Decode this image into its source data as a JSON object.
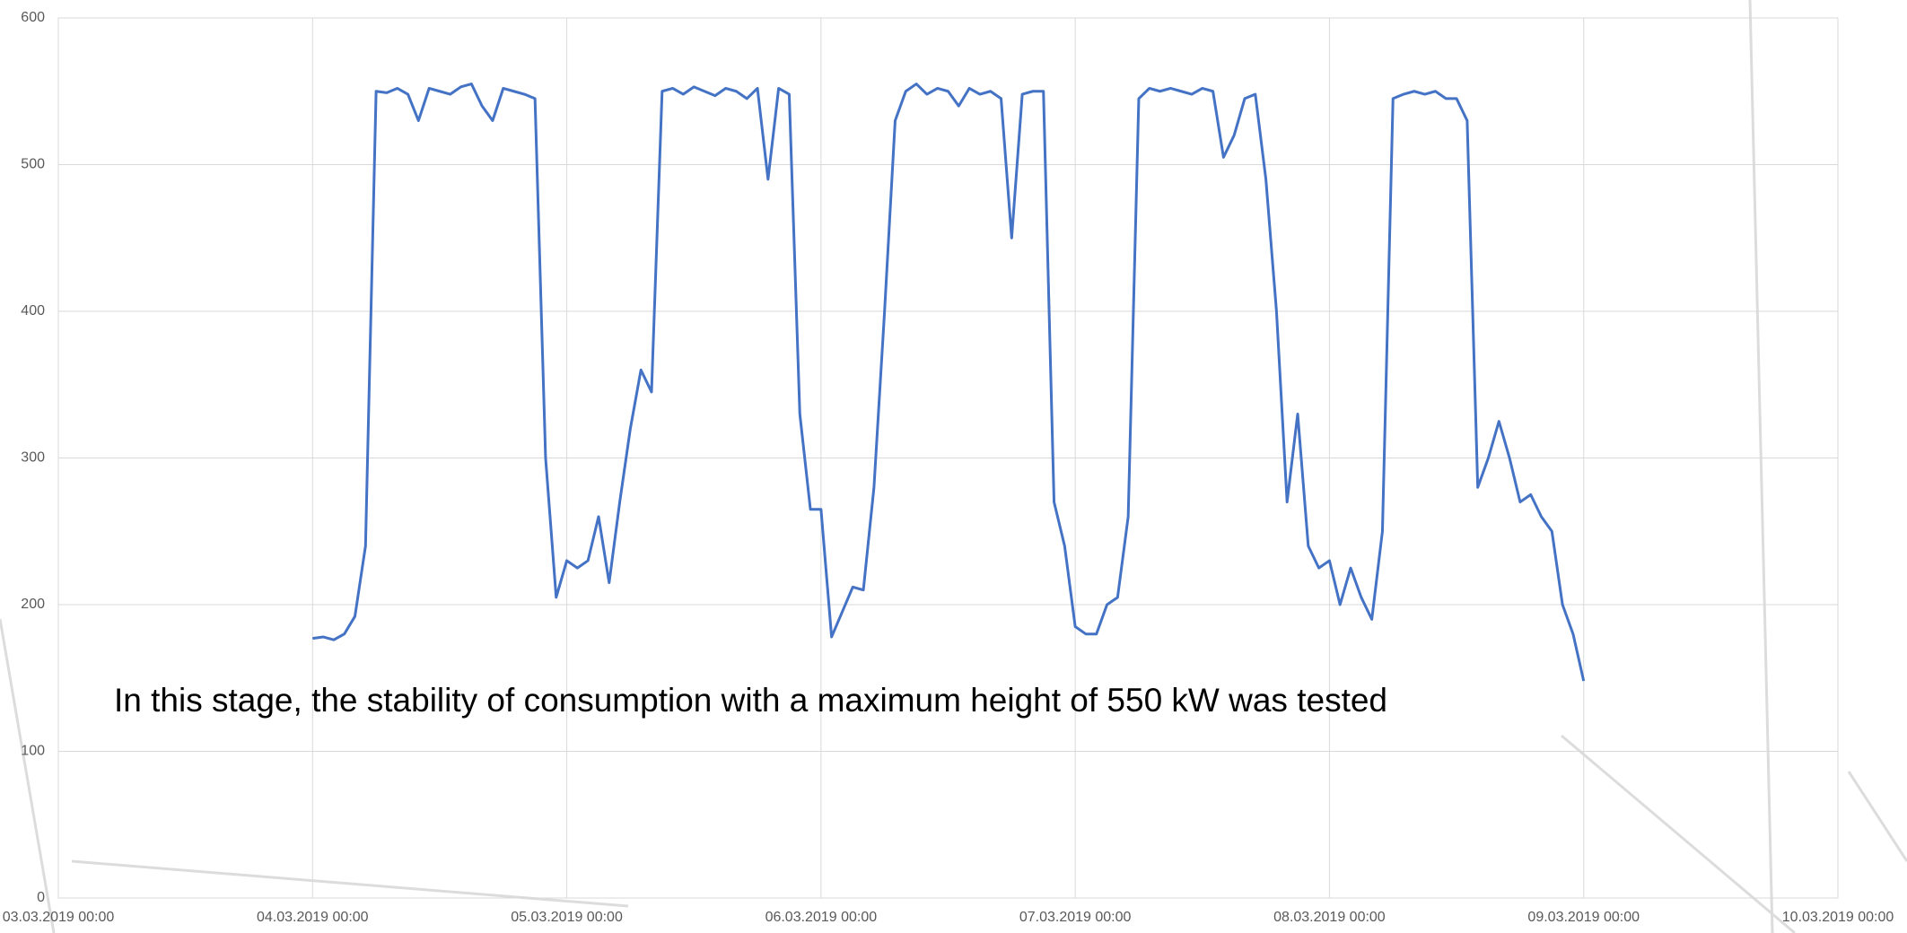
{
  "chart_data": {
    "type": "line",
    "annotation": "In this stage, the stability of consumption with a maximum height of 550 kW was tested",
    "x": [
      "04.03.2019 00:00",
      "04.03.2019 01:00",
      "04.03.2019 02:00",
      "04.03.2019 03:00",
      "04.03.2019 04:00",
      "04.03.2019 05:00",
      "04.03.2019 06:00",
      "04.03.2019 07:00",
      "04.03.2019 08:00",
      "04.03.2019 09:00",
      "04.03.2019 10:00",
      "04.03.2019 11:00",
      "04.03.2019 12:00",
      "04.03.2019 13:00",
      "04.03.2019 14:00",
      "04.03.2019 15:00",
      "04.03.2019 16:00",
      "04.03.2019 17:00",
      "04.03.2019 18:00",
      "04.03.2019 19:00",
      "04.03.2019 20:00",
      "04.03.2019 21:00",
      "04.03.2019 22:00",
      "04.03.2019 23:00",
      "05.03.2019 00:00",
      "05.03.2019 01:00",
      "05.03.2019 02:00",
      "05.03.2019 03:00",
      "05.03.2019 04:00",
      "05.03.2019 05:00",
      "05.03.2019 06:00",
      "05.03.2019 07:00",
      "05.03.2019 08:00",
      "05.03.2019 09:00",
      "05.03.2019 10:00",
      "05.03.2019 11:00",
      "05.03.2019 12:00",
      "05.03.2019 13:00",
      "05.03.2019 14:00",
      "05.03.2019 15:00",
      "05.03.2019 16:00",
      "05.03.2019 17:00",
      "05.03.2019 18:00",
      "05.03.2019 19:00",
      "05.03.2019 20:00",
      "05.03.2019 21:00",
      "05.03.2019 22:00",
      "05.03.2019 23:00",
      "06.03.2019 00:00",
      "06.03.2019 01:00",
      "06.03.2019 02:00",
      "06.03.2019 03:00",
      "06.03.2019 04:00",
      "06.03.2019 05:00",
      "06.03.2019 06:00",
      "06.03.2019 07:00",
      "06.03.2019 08:00",
      "06.03.2019 09:00",
      "06.03.2019 10:00",
      "06.03.2019 11:00",
      "06.03.2019 12:00",
      "06.03.2019 13:00",
      "06.03.2019 14:00",
      "06.03.2019 15:00",
      "06.03.2019 16:00",
      "06.03.2019 17:00",
      "06.03.2019 18:00",
      "06.03.2019 19:00",
      "06.03.2019 20:00",
      "06.03.2019 21:00",
      "06.03.2019 22:00",
      "06.03.2019 23:00",
      "07.03.2019 00:00",
      "07.03.2019 01:00",
      "07.03.2019 02:00",
      "07.03.2019 03:00",
      "07.03.2019 04:00",
      "07.03.2019 05:00",
      "07.03.2019 06:00",
      "07.03.2019 07:00",
      "07.03.2019 08:00",
      "07.03.2019 09:00",
      "07.03.2019 10:00",
      "07.03.2019 11:00",
      "07.03.2019 12:00",
      "07.03.2019 13:00",
      "07.03.2019 14:00",
      "07.03.2019 15:00",
      "07.03.2019 16:00",
      "07.03.2019 17:00",
      "07.03.2019 18:00",
      "07.03.2019 19:00",
      "07.03.2019 20:00",
      "07.03.2019 21:00",
      "07.03.2019 22:00",
      "07.03.2019 23:00",
      "08.03.2019 00:00",
      "08.03.2019 01:00",
      "08.03.2019 02:00",
      "08.03.2019 03:00",
      "08.03.2019 04:00",
      "08.03.2019 05:00",
      "08.03.2019 06:00",
      "08.03.2019 07:00",
      "08.03.2019 08:00",
      "08.03.2019 09:00",
      "08.03.2019 10:00",
      "08.03.2019 11:00",
      "08.03.2019 12:00",
      "08.03.2019 13:00",
      "08.03.2019 14:00",
      "08.03.2019 15:00",
      "08.03.2019 16:00",
      "08.03.2019 17:00",
      "08.03.2019 18:00",
      "08.03.2019 19:00",
      "08.03.2019 20:00",
      "08.03.2019 21:00",
      "08.03.2019 22:00",
      "08.03.2019 23:00",
      "09.03.2019 00:00"
    ],
    "values": [
      177,
      178,
      176,
      180,
      192,
      240,
      550,
      549,
      552,
      548,
      530,
      552,
      550,
      548,
      553,
      555,
      540,
      530,
      552,
      550,
      548,
      545,
      300,
      205,
      230,
      225,
      230,
      260,
      215,
      270,
      320,
      360,
      345,
      550,
      552,
      548,
      553,
      550,
      547,
      552,
      550,
      545,
      552,
      490,
      552,
      548,
      330,
      265,
      265,
      178,
      195,
      212,
      210,
      280,
      400,
      530,
      550,
      555,
      548,
      552,
      550,
      540,
      552,
      548,
      550,
      545,
      450,
      548,
      550,
      550,
      270,
      240,
      185,
      180,
      180,
      200,
      205,
      260,
      545,
      552,
      550,
      552,
      550,
      548,
      552,
      550,
      505,
      520,
      545,
      548,
      490,
      400,
      270,
      330,
      240,
      225,
      230,
      200,
      225,
      205,
      190,
      250,
      545,
      548,
      550,
      548,
      550,
      545,
      545,
      530,
      280,
      300,
      325,
      300,
      270,
      275,
      260,
      250,
      200,
      180,
      148
    ],
    "color": "#4472c4",
    "xlim": [
      "03.03.2019 00:00",
      "10.03.2019 00:00"
    ],
    "xticks": [
      "03.03.2019 00:00",
      "04.03.2019 00:00",
      "05.03.2019 00:00",
      "06.03.2019 00:00",
      "07.03.2019 00:00",
      "08.03.2019 00:00",
      "09.03.2019 00:00",
      "10.03.2019 00:00"
    ],
    "ylim": [
      0,
      600
    ],
    "yticks": [
      0,
      100,
      200,
      300,
      400,
      500,
      600
    ],
    "grid": true
  }
}
